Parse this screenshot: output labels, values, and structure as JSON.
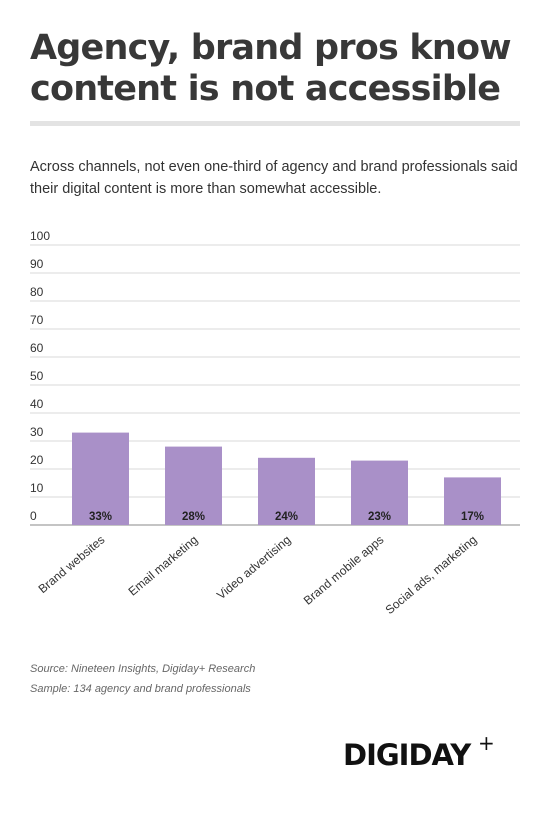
{
  "header": {
    "title": "Agency, brand pros know content is not accessible",
    "subtitle": "Across channels, not even one-third of agency and brand professionals said their digital content is more than somewhat accessible."
  },
  "footer": {
    "source": "Source: Nineteen Insights, Digiday+ Research",
    "sample": "Sample: 134 agency and brand professionals",
    "brand": "DIGIDAY",
    "brand_plus": "+"
  },
  "colors": {
    "bar": "#a990c8",
    "grid": "#d9d9d9",
    "title": "#383838"
  },
  "chart_data": {
    "type": "bar",
    "categories": [
      "Brand websites",
      "Email marketing",
      "Video advertising",
      "Brand mobile apps",
      "Social ads, marketing"
    ],
    "values": [
      33,
      28,
      24,
      23,
      17
    ],
    "data_labels": [
      "33%",
      "28%",
      "24%",
      "23%",
      "17%"
    ],
    "yticks": [
      "0",
      "10",
      "20",
      "30",
      "40",
      "50",
      "60",
      "70",
      "80",
      "90",
      "100"
    ],
    "ylim": [
      0,
      100
    ],
    "grid": true,
    "legend": "none"
  }
}
